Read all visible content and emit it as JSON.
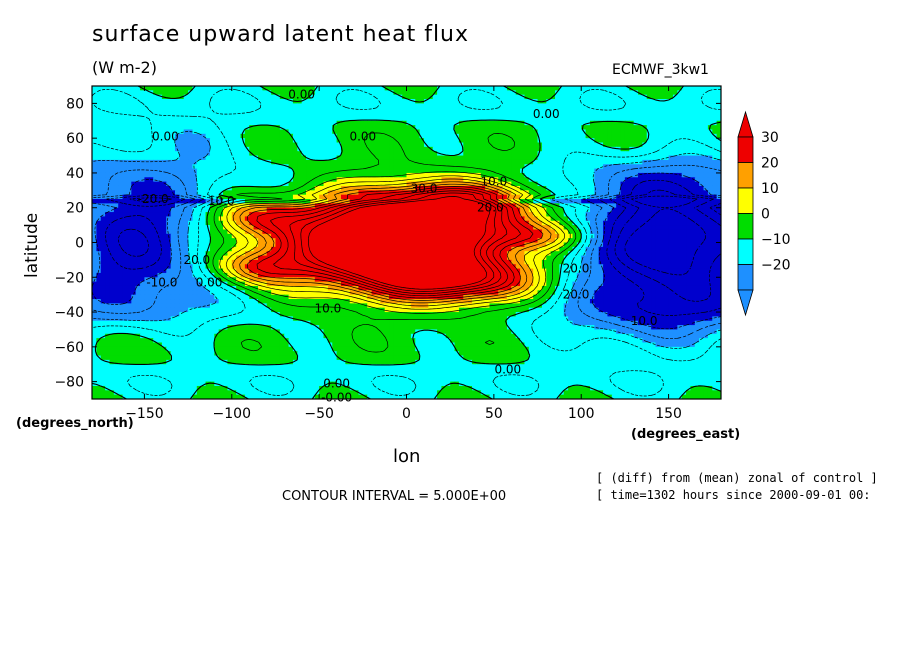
{
  "title": "surface upward latent heat flux",
  "units": "(W m-2)",
  "experiment": "ECMWF_3kw1",
  "ylabel": "latitude",
  "xlabel": "lon",
  "y_unit_label": "(degrees_north)",
  "x_unit_label": "(degrees_east)",
  "contour_interval": "CONTOUR INTERVAL = 5.000E+00",
  "notes": [
    "[ (diff) from (mean) zonal of control ]",
    "[ time=1302 hours since 2000-09-01 00:"
  ],
  "colors": {
    "c30plus": "#ee0000",
    "c20_30": "#ffa000",
    "c10_20": "#ffff00",
    "c0_10": "#00dd00",
    "cm10_0": "#00ffff",
    "cm20_m10": "#1e90ff",
    "cm20minus": "#0000cd"
  },
  "chart_data": {
    "type": "heatmap",
    "title": "surface upward latent heat flux",
    "units": "(W m-2)",
    "xlabel": "lon",
    "ylabel": "latitude",
    "xlim": [
      -180,
      180
    ],
    "ylim": [
      -90,
      90
    ],
    "xticks": [
      -150,
      -100,
      -50,
      0,
      50,
      100,
      150
    ],
    "yticks": [
      -80,
      -60,
      -40,
      -20,
      0,
      20,
      40,
      60,
      80
    ],
    "colorbar": {
      "tick_labels": [
        "30",
        "20",
        "10",
        "0",
        "-10",
        "-20"
      ],
      "levels": [
        -20,
        -10,
        0,
        10,
        20,
        30
      ]
    },
    "contour_labels": [
      {
        "text": "0.00",
        "lon": -60,
        "lat": 85
      },
      {
        "text": "0.00",
        "lon": 80,
        "lat": 74
      },
      {
        "text": "0.00",
        "lon": -138,
        "lat": 61
      },
      {
        "text": "0.00",
        "lon": -25,
        "lat": 61
      },
      {
        "text": "-20.0",
        "lon": -145,
        "lat": 25
      },
      {
        "text": "10.0",
        "lon": -106,
        "lat": 24
      },
      {
        "text": "30.0",
        "lon": 10,
        "lat": 31
      },
      {
        "text": "10.0",
        "lon": 50,
        "lat": 35
      },
      {
        "text": "20.0",
        "lon": 48,
        "lat": 20
      },
      {
        "text": "20.0",
        "lon": -120,
        "lat": -10
      },
      {
        "text": "-10.0",
        "lon": -140,
        "lat": -23
      },
      {
        "text": "0.00",
        "lon": -113,
        "lat": -23
      },
      {
        "text": "20.0",
        "lon": 97,
        "lat": -15
      },
      {
        "text": "20.0",
        "lon": 97,
        "lat": -30
      },
      {
        "text": "10.0",
        "lon": -45,
        "lat": -38
      },
      {
        "text": "10.0",
        "lon": 136,
        "lat": -45
      },
      {
        "text": "0.00",
        "lon": 58,
        "lat": -73
      },
      {
        "text": "0.00",
        "lon": -40,
        "lat": -81
      },
      {
        "text": "-0.00",
        "lon": -40,
        "lat": -89
      }
    ]
  }
}
